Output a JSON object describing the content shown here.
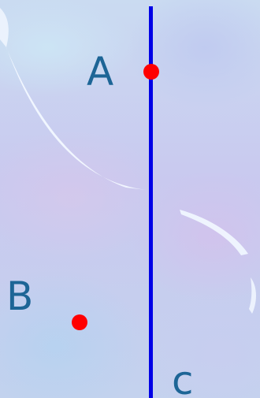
{
  "diagram": {
    "points": [
      {
        "id": "A",
        "label": "A"
      },
      {
        "id": "B",
        "label": "B"
      }
    ],
    "line": {
      "label": "c"
    },
    "colors": {
      "line": "#0000e6",
      "point": "#ff0000",
      "label": "#1d6596",
      "swoosh": "#f2f8ff"
    }
  }
}
